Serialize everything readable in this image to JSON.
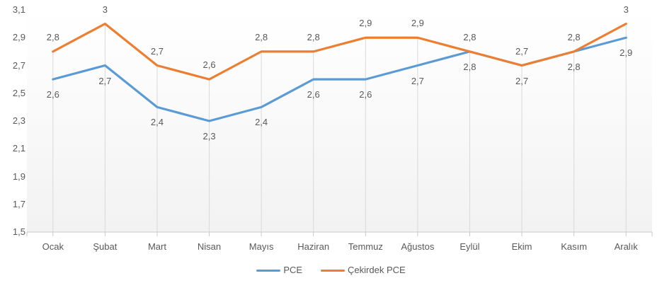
{
  "chart_data": {
    "type": "line",
    "categories": [
      "Ocak",
      "Şubat",
      "Mart",
      "Nisan",
      "Mayıs",
      "Haziran",
      "Temmuz",
      "Ağustos",
      "Eylül",
      "Ekim",
      "Kasım",
      "Aralık"
    ],
    "series": [
      {
        "id": "pce",
        "name": "PCE",
        "color": "#5b9bd5",
        "values": [
          2.6,
          2.7,
          2.4,
          2.3,
          2.4,
          2.6,
          2.6,
          2.7,
          2.8,
          2.7,
          2.8,
          2.9
        ],
        "point_labels": [
          "2,6",
          "2,7",
          "2,4",
          "2,3",
          "2,4",
          "2,6",
          "2,6",
          "2,7",
          "2,8",
          "2,7",
          "2,8",
          "2,9"
        ],
        "label_position": "below"
      },
      {
        "id": "cekirdek-pce",
        "name": "Çekirdek PCE",
        "color": "#ed7d31",
        "values": [
          2.8,
          3.0,
          2.7,
          2.6,
          2.8,
          2.8,
          2.9,
          2.9,
          2.8,
          2.7,
          2.8,
          3.0
        ],
        "point_labels": [
          "2,8",
          "3",
          "2,7",
          "2,6",
          "2,8",
          "2,8",
          "2,9",
          "2,9",
          "2,8",
          "2,7",
          "2,8",
          "3"
        ],
        "label_position": "above"
      }
    ],
    "y_axis": {
      "min": 1.5,
      "max": 3.1,
      "step": 0.2,
      "tick_labels_top_to_bottom": [
        "3,1",
        "2,9",
        "2,7",
        "2,5",
        "2,3",
        "2,1",
        "1,9",
        "1,7",
        "1,5"
      ]
    },
    "legend": {
      "position": "bottom",
      "entries": [
        "PCE",
        "Çekirdek PCE"
      ]
    },
    "grid": {
      "horizontal": false,
      "vertical_drop_lines_to_axis": true
    },
    "styles": {
      "drop_line_color": "#d9d9d9",
      "axis_line_color": "#c9c9c9",
      "text_color": "#595959"
    }
  }
}
